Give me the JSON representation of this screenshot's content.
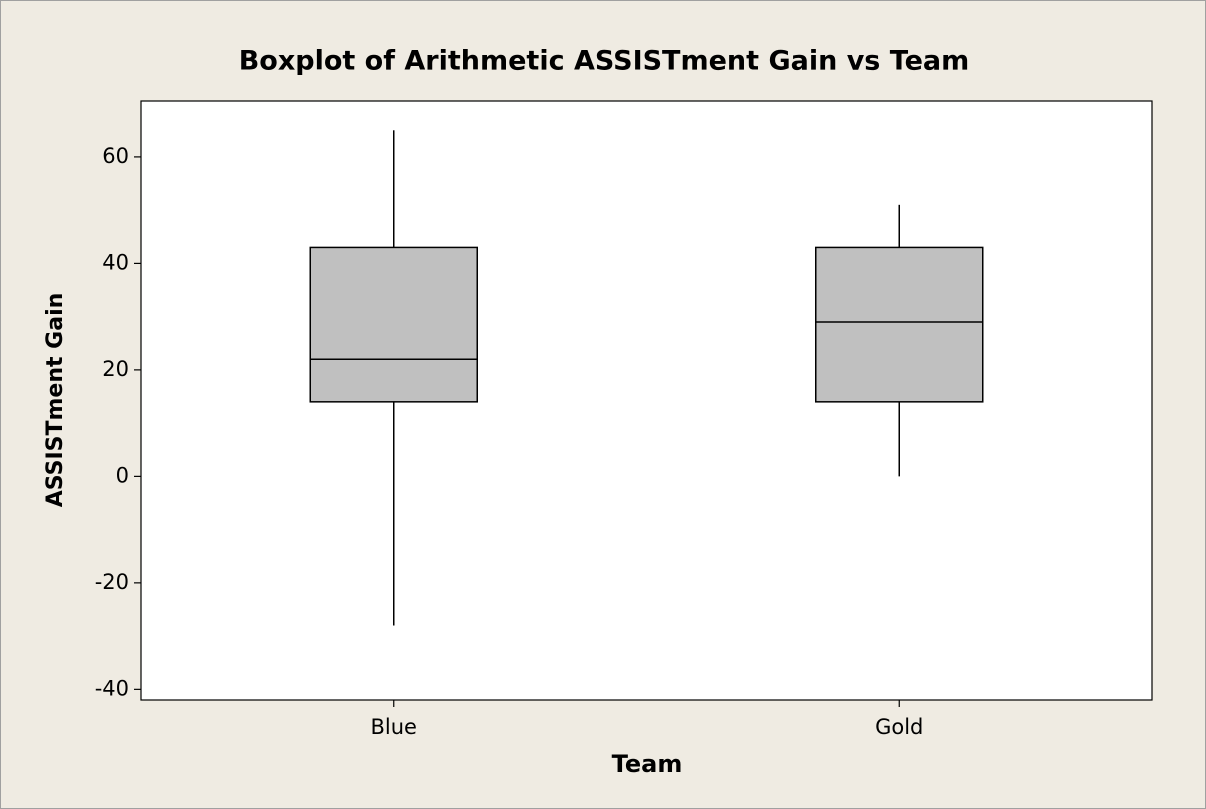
{
  "chart_data": {
    "type": "box",
    "title": "Boxplot of Arithmetic ASSISTment Gain vs Team",
    "x_label": "Team",
    "y_label": "ASSISTment Gain",
    "categories": [
      "Blue",
      "Gold"
    ],
    "boxes": [
      {
        "min": -28,
        "q1": 14,
        "median": 22,
        "q3": 43,
        "max": 65
      },
      {
        "min": 0,
        "q1": 14,
        "median": 29,
        "q3": 43,
        "max": 51
      }
    ],
    "color": "#c0c0c0",
    "ylim": [
      -42,
      70.5
    ],
    "yticks": [
      -40,
      -20,
      0,
      20,
      40,
      60
    ],
    "grid": false
  }
}
